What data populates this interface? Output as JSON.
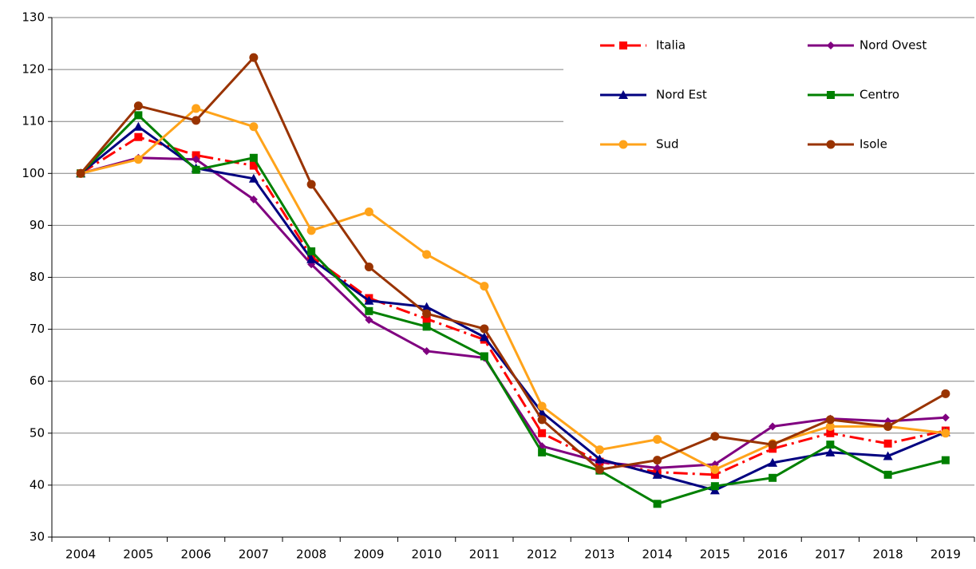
{
  "chart_data": {
    "type": "line",
    "categories": [
      "2004",
      "2005",
      "2006",
      "2007",
      "2008",
      "2009",
      "2010",
      "2011",
      "2012",
      "2013",
      "2014",
      "2015",
      "2016",
      "2017",
      "2018",
      "2019"
    ],
    "ylim": [
      30,
      130
    ],
    "yticks": [
      30,
      40,
      50,
      60,
      70,
      80,
      90,
      100,
      110,
      120,
      130
    ],
    "grid": true,
    "legend": "top-right",
    "series": [
      {
        "name": "Italia",
        "color": "#ff0000",
        "marker": "square",
        "dash": "dashdot",
        "values": [
          100,
          107,
          103.5,
          101.5,
          84,
          76,
          72,
          68,
          50,
          44.5,
          42.5,
          42,
          47,
          50,
          48,
          50.5
        ]
      },
      {
        "name": "Nord Ovest",
        "color": "#800080",
        "marker": "diamond",
        "values": [
          100,
          103,
          102.7,
          95,
          82.5,
          71.8,
          65.8,
          64.5,
          47.5,
          44.5,
          43.3,
          44,
          51.3,
          52.8,
          52.3,
          53
        ]
      },
      {
        "name": "Nord Est",
        "color": "#000080",
        "marker": "triangle",
        "values": [
          100,
          109,
          101,
          99,
          83.5,
          75.5,
          74.3,
          68.5,
          54,
          45,
          42,
          39,
          44.3,
          46.3,
          45.6,
          50.2
        ]
      },
      {
        "name": "Centro",
        "color": "#008000",
        "marker": "square",
        "values": [
          100,
          111.2,
          100.7,
          103,
          85,
          73.5,
          70.5,
          64.8,
          46.3,
          42.8,
          36.4,
          39.8,
          41.4,
          47.8,
          42,
          44.8
        ]
      },
      {
        "name": "Sud",
        "color": "#ffa31a",
        "marker": "circle",
        "values": [
          100,
          102.7,
          112.5,
          109,
          89,
          92.6,
          84.4,
          78.3,
          55.2,
          46.8,
          48.8,
          43,
          48,
          51.3,
          51.3,
          50
        ]
      },
      {
        "name": "Isole",
        "color": "#993300",
        "marker": "circle",
        "values": [
          100,
          113,
          110.2,
          122.3,
          97.9,
          82,
          73,
          70.1,
          52.6,
          43,
          44.8,
          49.4,
          47.8,
          52.6,
          51.3,
          57.6
        ]
      }
    ]
  }
}
